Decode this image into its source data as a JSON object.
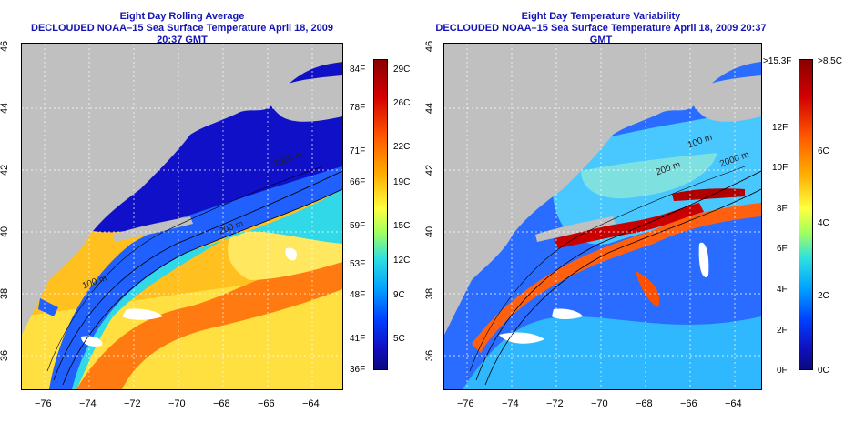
{
  "left_panel": {
    "title_line1": "Eight Day Rolling Average",
    "title_line2": "DECLOUDED NOAA–15 Sea Surface Temperature April 18, 2009 20:37 GMT",
    "colorbar": {
      "f_labels": [
        "84F",
        "78F",
        "71F",
        "66F",
        "59F",
        "53F",
        "48F",
        "41F",
        "36F"
      ],
      "c_labels": [
        "29C",
        "26C",
        "22C",
        "19C",
        "15C",
        "12C",
        "9C",
        "5C"
      ],
      "colors": [
        "#8b0000",
        "#d40000",
        "#ff5a00",
        "#ffae00",
        "#ffff40",
        "#a0ff60",
        "#30e0e0",
        "#00a0ff",
        "#0040ff",
        "#1010c0",
        "#0a0a80"
      ]
    },
    "depth_labels": [
      "2000 m",
      "200 m",
      "100 m"
    ]
  },
  "right_panel": {
    "title_line1": "Eight Day Temperature Variability",
    "title_line2": "DECLOUDED NOAA–15 Sea Surface Temperature April 18, 2009 20:37 GMT",
    "colorbar": {
      "f_labels": [
        ">15.3F",
        "12F",
        "10F",
        "8F",
        "6F",
        "4F",
        "2F",
        "0F"
      ],
      "c_labels": [
        ">8.5C",
        "6C",
        "4C",
        "2C",
        "0C"
      ],
      "colors": [
        "#8b0000",
        "#d40000",
        "#ff5a00",
        "#ffae00",
        "#ffff40",
        "#a0ff60",
        "#30e0e0",
        "#00a0ff",
        "#0040ff",
        "#1010c0",
        "#0a0a80"
      ]
    },
    "depth_labels": [
      "2000 m",
      "200 m",
      "100 m"
    ]
  },
  "axes": {
    "x_ticks": [
      "−76",
      "−74",
      "−72",
      "−70",
      "−68",
      "−66",
      "−64"
    ],
    "y_ticks": [
      "36",
      "38",
      "40",
      "42",
      "44",
      "46"
    ]
  },
  "colors": {
    "title": "#1414b4",
    "land": "#c0c0c0"
  }
}
